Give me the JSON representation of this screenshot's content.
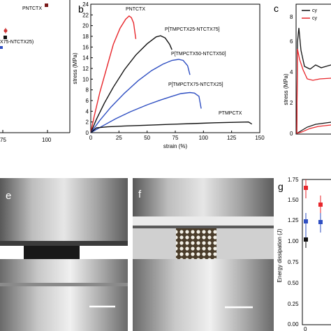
{
  "panels": {
    "a": {
      "right_label": "PNTCTX",
      "middle_label": "X75-NTCTX25)",
      "x_ticks": [
        "75",
        "100"
      ]
    },
    "b": {
      "letter": "b"
    },
    "c": {
      "letter": "c",
      "ylabel": "stress (MPa)",
      "y_ticks": [
        "0",
        "2",
        "4",
        "6",
        "8"
      ],
      "legend": [
        "cy",
        "cy"
      ]
    },
    "e": {
      "letter": "e"
    },
    "f": {
      "letter": "f"
    },
    "g": {
      "letter": "g",
      "ylabel": "Energy dissipation (J)",
      "y_ticks": [
        "0.00",
        "0.25",
        "0.50",
        "0.75",
        "1.00",
        "1.25",
        "1.50",
        "1.75"
      ],
      "x_ticks": [
        "0"
      ]
    }
  },
  "colors": {
    "black": "#111111",
    "red": "#e8262b",
    "blue": "#2f4fc2"
  },
  "chart_data": {
    "type": "line",
    "title": "",
    "xlabel": "strain (%)",
    "ylabel": "stress (MPa)",
    "xlim": [
      0,
      150
    ],
    "ylim": [
      0,
      24
    ],
    "x_ticks": [
      "0",
      "25",
      "50",
      "75",
      "100",
      "125",
      "150"
    ],
    "y_ticks": [
      "0",
      "2",
      "4",
      "6",
      "8",
      "10",
      "12",
      "14",
      "16",
      "18",
      "20",
      "22",
      "24"
    ],
    "series": [
      {
        "name": "PNTCTX",
        "color": "#e8262b",
        "points": [
          [
            0,
            0
          ],
          [
            3,
            3
          ],
          [
            8,
            7.5
          ],
          [
            14,
            12
          ],
          [
            20,
            16.5
          ],
          [
            26,
            19.5
          ],
          [
            31,
            21.2
          ],
          [
            34,
            21.8
          ],
          [
            36,
            21.5
          ],
          [
            38,
            20.5
          ],
          [
            40,
            17.5
          ]
        ]
      },
      {
        "name": "P[TMPCTX25-NTCTX75]",
        "color": "#111111",
        "points": [
          [
            0,
            0
          ],
          [
            5,
            2.5
          ],
          [
            12,
            5.5
          ],
          [
            20,
            8.5
          ],
          [
            30,
            11.8
          ],
          [
            40,
            14.5
          ],
          [
            50,
            16.6
          ],
          [
            58,
            17.9
          ],
          [
            62,
            18.1
          ],
          [
            66,
            17.7
          ],
          [
            70,
            16.5
          ],
          [
            72,
            15.5
          ]
        ]
      },
      {
        "name": "P[TMPCTX50-NTCTX50]",
        "color": "#2f4fc2",
        "points": [
          [
            0,
            0
          ],
          [
            8,
            2.3
          ],
          [
            18,
            4.8
          ],
          [
            30,
            7.4
          ],
          [
            42,
            9.7
          ],
          [
            54,
            11.6
          ],
          [
            64,
            12.8
          ],
          [
            72,
            13.5
          ],
          [
            78,
            13.7
          ],
          [
            82,
            13.5
          ],
          [
            86,
            12.5
          ],
          [
            88,
            10.8
          ]
        ]
      },
      {
        "name": "P[TMPCTX75-NTCTX25]",
        "color": "#2f4fc2",
        "points": [
          [
            0,
            0
          ],
          [
            10,
            1.2
          ],
          [
            22,
            2.6
          ],
          [
            35,
            3.9
          ],
          [
            50,
            5.2
          ],
          [
            62,
            6.1
          ],
          [
            72,
            6.8
          ],
          [
            80,
            7.3
          ],
          [
            88,
            7.5
          ],
          [
            92,
            7.4
          ],
          [
            96,
            6.8
          ],
          [
            98,
            4.5
          ]
        ]
      },
      {
        "name": "PTMPCTX",
        "color": "#111111",
        "points": [
          [
            0,
            0
          ],
          [
            5,
            0.9
          ],
          [
            15,
            1.1
          ],
          [
            30,
            1.25
          ],
          [
            50,
            1.4
          ],
          [
            70,
            1.55
          ],
          [
            90,
            1.7
          ],
          [
            110,
            1.85
          ],
          [
            130,
            1.95
          ],
          [
            140,
            2.0
          ],
          [
            143,
            1.6
          ]
        ]
      }
    ]
  }
}
